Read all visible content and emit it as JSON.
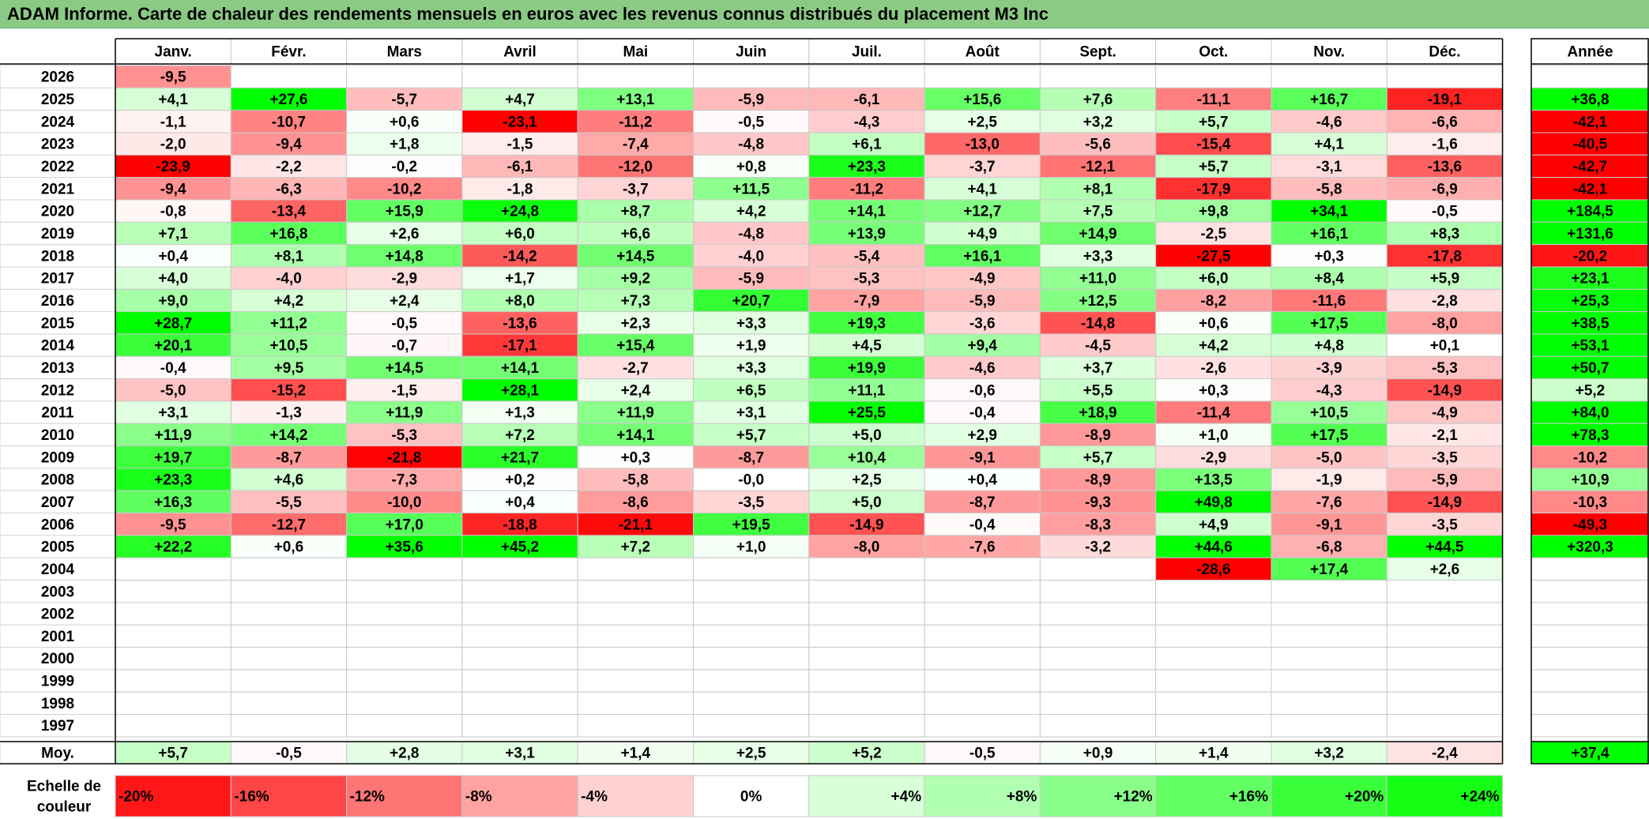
{
  "title": "ADAM Informe. Carte de chaleur des rendements mensuels en euros avec les revenus connus distribués du placement M3 Inc",
  "chart_data": {
    "type": "heatmap",
    "columns": [
      "Janv.",
      "Févr.",
      "Mars",
      "Avril",
      "Mai",
      "Juin",
      "Juil.",
      "Août",
      "Sept.",
      "Oct.",
      "Nov.",
      "Déc."
    ],
    "annual_header": "Année",
    "rows": [
      {
        "year": "2026",
        "values": [
          "-9,5",
          "",
          "",
          "",
          "",
          "",
          "",
          "",
          "",
          "",
          "",
          ""
        ],
        "annual": ""
      },
      {
        "year": "2025",
        "values": [
          "+4,1",
          "+27,6",
          "-5,7",
          "+4,7",
          "+13,1",
          "-5,9",
          "-6,1",
          "+15,6",
          "+7,6",
          "-11,1",
          "+16,7",
          "-19,1"
        ],
        "annual": "+36,8"
      },
      {
        "year": "2024",
        "values": [
          "-1,1",
          "-10,7",
          "+0,6",
          "-23,1",
          "-11,2",
          "-0,5",
          "-4,3",
          "+2,5",
          "+3,2",
          "+5,7",
          "-4,6",
          "-6,6"
        ],
        "annual": "-42,1"
      },
      {
        "year": "2023",
        "values": [
          "-2,0",
          "-9,4",
          "+1,8",
          "-1,5",
          "-7,4",
          "-4,8",
          "+6,1",
          "-13,0",
          "-5,6",
          "-15,4",
          "+4,1",
          "-1,6"
        ],
        "annual": "-40,5"
      },
      {
        "year": "2022",
        "values": [
          "-23,9",
          "-2,2",
          "-0,2",
          "-6,1",
          "-12,0",
          "+0,8",
          "+23,3",
          "-3,7",
          "-12,1",
          "+5,7",
          "-3,1",
          "-13,6"
        ],
        "annual": "-42,7"
      },
      {
        "year": "2021",
        "values": [
          "-9,4",
          "-6,3",
          "-10,2",
          "-1,8",
          "-3,7",
          "+11,5",
          "-11,2",
          "+4,1",
          "+8,1",
          "-17,9",
          "-5,8",
          "-6,9"
        ],
        "annual": "-42,1"
      },
      {
        "year": "2020",
        "values": [
          "-0,8",
          "-13,4",
          "+15,9",
          "+24,8",
          "+8,7",
          "+4,2",
          "+14,1",
          "+12,7",
          "+7,5",
          "+9,8",
          "+34,1",
          "-0,5"
        ],
        "annual": "+184,5"
      },
      {
        "year": "2019",
        "values": [
          "+7,1",
          "+16,8",
          "+2,6",
          "+6,0",
          "+6,6",
          "-4,8",
          "+13,9",
          "+4,9",
          "+14,9",
          "-2,5",
          "+16,1",
          "+8,3"
        ],
        "annual": "+131,6"
      },
      {
        "year": "2018",
        "values": [
          "+0,4",
          "+8,1",
          "+14,8",
          "-14,2",
          "+14,5",
          "-4,0",
          "-5,4",
          "+16,1",
          "+3,3",
          "-27,5",
          "+0,3",
          "-17,8"
        ],
        "annual": "-20,2"
      },
      {
        "year": "2017",
        "values": [
          "+4,0",
          "-4,0",
          "-2,9",
          "+1,7",
          "+9,2",
          "-5,9",
          "-5,3",
          "-4,9",
          "+11,0",
          "+6,0",
          "+8,4",
          "+5,9"
        ],
        "annual": "+23,1"
      },
      {
        "year": "2016",
        "values": [
          "+9,0",
          "+4,2",
          "+2,4",
          "+8,0",
          "+7,3",
          "+20,7",
          "-7,9",
          "-5,9",
          "+12,5",
          "-8,2",
          "-11,6",
          "-2,8"
        ],
        "annual": "+25,3"
      },
      {
        "year": "2015",
        "values": [
          "+28,7",
          "+11,2",
          "-0,5",
          "-13,6",
          "+2,3",
          "+3,3",
          "+19,3",
          "-3,6",
          "-14,8",
          "+0,6",
          "+17,5",
          "-8,0"
        ],
        "annual": "+38,5"
      },
      {
        "year": "2014",
        "values": [
          "+20,1",
          "+10,5",
          "-0,7",
          "-17,1",
          "+15,4",
          "+1,9",
          "+4,5",
          "+9,4",
          "-4,5",
          "+4,2",
          "+4,8",
          "+0,1"
        ],
        "annual": "+53,1"
      },
      {
        "year": "2013",
        "values": [
          "-0,4",
          "+9,5",
          "+14,5",
          "+14,1",
          "-2,7",
          "+3,3",
          "+19,9",
          "-4,6",
          "+3,7",
          "-2,6",
          "-3,9",
          "-5,3"
        ],
        "annual": "+50,7"
      },
      {
        "year": "2012",
        "values": [
          "-5,0",
          "-15,2",
          "-1,5",
          "+28,1",
          "+2,4",
          "+6,5",
          "+11,1",
          "-0,6",
          "+5,5",
          "+0,3",
          "-4,3",
          "-14,9"
        ],
        "annual": "+5,2"
      },
      {
        "year": "2011",
        "values": [
          "+3,1",
          "-1,3",
          "+11,9",
          "+1,3",
          "+11,9",
          "+3,1",
          "+25,5",
          "-0,4",
          "+18,9",
          "-11,4",
          "+10,5",
          "-4,9"
        ],
        "annual": "+84,0"
      },
      {
        "year": "2010",
        "values": [
          "+11,9",
          "+14,2",
          "-5,3",
          "+7,2",
          "+14,1",
          "+5,7",
          "+5,0",
          "+2,9",
          "-8,9",
          "+1,0",
          "+17,5",
          "-2,1"
        ],
        "annual": "+78,3"
      },
      {
        "year": "2009",
        "values": [
          "+19,7",
          "-8,7",
          "-21,8",
          "+21,7",
          "+0,3",
          "-8,7",
          "+10,4",
          "-9,1",
          "+5,7",
          "-2,9",
          "-5,0",
          "-3,5"
        ],
        "annual": "-10,2"
      },
      {
        "year": "2008",
        "values": [
          "+23,3",
          "+4,6",
          "-7,3",
          "+0,2",
          "-5,8",
          "-0,0",
          "+2,5",
          "+0,4",
          "-8,9",
          "+13,5",
          "-1,9",
          "-5,9"
        ],
        "annual": "+10,9"
      },
      {
        "year": "2007",
        "values": [
          "+16,3",
          "-5,5",
          "-10,0",
          "+0,4",
          "-8,6",
          "-3,5",
          "+5,0",
          "-8,7",
          "-9,3",
          "+49,8",
          "-7,6",
          "-14,9"
        ],
        "annual": "-10,3"
      },
      {
        "year": "2006",
        "values": [
          "-9,5",
          "-12,7",
          "+17,0",
          "-18,8",
          "-21,1",
          "+19,5",
          "-14,9",
          "-0,4",
          "-8,3",
          "+4,9",
          "-9,1",
          "-3,5"
        ],
        "annual": "-49,3"
      },
      {
        "year": "2005",
        "values": [
          "+22,2",
          "+0,6",
          "+35,6",
          "+45,2",
          "+7,2",
          "+1,0",
          "-8,0",
          "-7,6",
          "-3,2",
          "+44,6",
          "-6,8",
          "+44,5"
        ],
        "annual": "+320,3"
      },
      {
        "year": "2004",
        "values": [
          "",
          "",
          "",
          "",
          "",
          "",
          "",
          "",
          "",
          "-28,6",
          "+17,4",
          "+2,6"
        ],
        "annual": ""
      },
      {
        "year": "2003",
        "values": [
          "",
          "",
          "",
          "",
          "",
          "",
          "",
          "",
          "",
          "",
          "",
          ""
        ],
        "annual": ""
      },
      {
        "year": "2002",
        "values": [
          "",
          "",
          "",
          "",
          "",
          "",
          "",
          "",
          "",
          "",
          "",
          ""
        ],
        "annual": ""
      },
      {
        "year": "2001",
        "values": [
          "",
          "",
          "",
          "",
          "",
          "",
          "",
          "",
          "",
          "",
          "",
          ""
        ],
        "annual": ""
      },
      {
        "year": "2000",
        "values": [
          "",
          "",
          "",
          "",
          "",
          "",
          "",
          "",
          "",
          "",
          "",
          ""
        ],
        "annual": ""
      },
      {
        "year": "1999",
        "values": [
          "",
          "",
          "",
          "",
          "",
          "",
          "",
          "",
          "",
          "",
          "",
          ""
        ],
        "annual": ""
      },
      {
        "year": "1998",
        "values": [
          "",
          "",
          "",
          "",
          "",
          "",
          "",
          "",
          "",
          "",
          "",
          ""
        ],
        "annual": ""
      },
      {
        "year": "1997",
        "values": [
          "",
          "",
          "",
          "",
          "",
          "",
          "",
          "",
          "",
          "",
          "",
          ""
        ],
        "annual": ""
      }
    ],
    "average": {
      "label": "Moy.",
      "values": [
        "+5,7",
        "-0,5",
        "+2,8",
        "+3,1",
        "+1,4",
        "+2,5",
        "+5,2",
        "-0,5",
        "+0,9",
        "+1,4",
        "+3,2",
        "-2,4"
      ],
      "annual": "+37,4"
    },
    "color_scale": {
      "label_line1": "Echelle de",
      "label_line2": "couleur",
      "steps": [
        {
          "label": "-20%",
          "value": -20
        },
        {
          "label": "-16%",
          "value": -16
        },
        {
          "label": "-12%",
          "value": -12
        },
        {
          "label": "-8%",
          "value": -8
        },
        {
          "label": "-4%",
          "value": -4
        },
        {
          "label": "0%",
          "value": 0
        },
        {
          "label": "+4%",
          "value": 4
        },
        {
          "label": "+8%",
          "value": 8
        },
        {
          "label": "+12%",
          "value": 12
        },
        {
          "label": "+16%",
          "value": 16
        },
        {
          "label": "+20%",
          "value": 20
        },
        {
          "label": "+24%",
          "value": 24
        }
      ],
      "neg_color": "#ff0000",
      "pos_color": "#00ff00",
      "neutral_color": "#ffffff"
    }
  }
}
